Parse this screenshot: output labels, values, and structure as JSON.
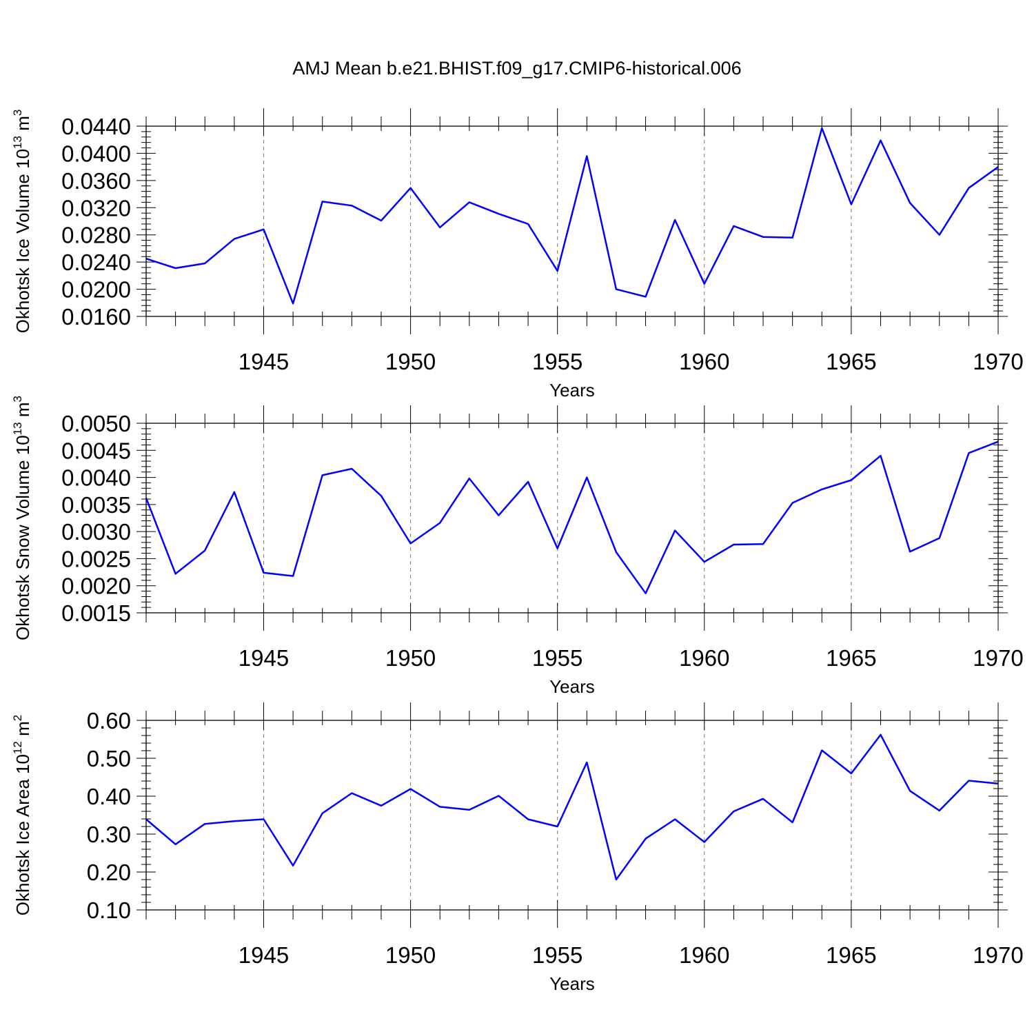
{
  "figure_title": "AMJ Mean b.e21.BHIST.f09_g17.CMIP6-historical.006",
  "colors": {
    "line": "#0000ff",
    "axis": "#000000",
    "grid": "#777777"
  },
  "chart_data": [
    {
      "type": "line",
      "ylabel": "Okhotsk Ice Volume 10",
      "ylabel_exp": "13",
      "ylabel_unit": " m",
      "ylabel_unit_exp": "3",
      "xlabel": "Years",
      "xlim": [
        1941,
        1970
      ],
      "ylim": [
        0.016,
        0.044
      ],
      "yticks": [
        0.016,
        0.02,
        0.024,
        0.028,
        0.032,
        0.036,
        0.04,
        0.044
      ],
      "ytick_labels": [
        "0.0160",
        "0.0200",
        "0.0240",
        "0.0280",
        "0.0320",
        "0.0360",
        "0.0400",
        "0.0440"
      ],
      "xticks": [
        1945,
        1950,
        1955,
        1960,
        1965,
        1970
      ],
      "xtick_labels": [
        "1945",
        "1950",
        "1955",
        "1960",
        "1965",
        "1970"
      ],
      "grid": "vertical dashed at major x ticks",
      "x": [
        1941,
        1942,
        1943,
        1944,
        1945,
        1946,
        1947,
        1948,
        1949,
        1950,
        1951,
        1952,
        1953,
        1954,
        1955,
        1956,
        1957,
        1958,
        1959,
        1960,
        1961,
        1962,
        1963,
        1964,
        1965,
        1966,
        1967,
        1968,
        1969,
        1970
      ],
      "values": [
        0.0245,
        0.0231,
        0.0238,
        0.0274,
        0.0288,
        0.0179,
        0.0329,
        0.0323,
        0.0301,
        0.0349,
        0.0291,
        0.0328,
        0.0311,
        0.0296,
        0.0227,
        0.0396,
        0.02,
        0.0189,
        0.0302,
        0.0208,
        0.0293,
        0.0277,
        0.0276,
        0.0437,
        0.0325,
        0.0419,
        0.0327,
        0.028,
        0.0349,
        0.038
      ]
    },
    {
      "type": "line",
      "ylabel": "Okhotsk Snow Volume 10",
      "ylabel_exp": "13",
      "ylabel_unit": " m",
      "ylabel_unit_exp": "3",
      "xlabel": "Years",
      "xlim": [
        1941,
        1970
      ],
      "ylim": [
        0.0015,
        0.005
      ],
      "yticks": [
        0.0015,
        0.002,
        0.0025,
        0.003,
        0.0035,
        0.004,
        0.0045,
        0.005
      ],
      "ytick_labels": [
        "0.0015",
        "0.0020",
        "0.0025",
        "0.0030",
        "0.0035",
        "0.0040",
        "0.0045",
        "0.0050"
      ],
      "xticks": [
        1945,
        1950,
        1955,
        1960,
        1965,
        1970
      ],
      "xtick_labels": [
        "1945",
        "1950",
        "1955",
        "1960",
        "1965",
        "1970"
      ],
      "grid": "vertical dashed at major x ticks",
      "x": [
        1941,
        1942,
        1943,
        1944,
        1945,
        1946,
        1947,
        1948,
        1949,
        1950,
        1951,
        1952,
        1953,
        1954,
        1955,
        1956,
        1957,
        1958,
        1959,
        1960,
        1961,
        1962,
        1963,
        1964,
        1965,
        1966,
        1967,
        1968,
        1969,
        1970
      ],
      "values": [
        0.00362,
        0.00222,
        0.00265,
        0.00373,
        0.00224,
        0.00218,
        0.00404,
        0.00416,
        0.00366,
        0.00278,
        0.00316,
        0.00398,
        0.0033,
        0.00392,
        0.00269,
        0.004,
        0.00262,
        0.00186,
        0.00302,
        0.00244,
        0.00276,
        0.00277,
        0.00353,
        0.00378,
        0.00395,
        0.0044,
        0.00263,
        0.00288,
        0.00445,
        0.00466
      ]
    },
    {
      "type": "line",
      "ylabel": "Okhotsk Ice Area 10",
      "ylabel_exp": "12",
      "ylabel_unit": " m",
      "ylabel_unit_exp": "2",
      "xlabel": "Years",
      "xlim": [
        1941,
        1970
      ],
      "ylim": [
        0.1,
        0.6
      ],
      "yticks": [
        0.1,
        0.2,
        0.3,
        0.4,
        0.5,
        0.6
      ],
      "ytick_labels": [
        "0.10",
        "0.20",
        "0.30",
        "0.40",
        "0.50",
        "0.60"
      ],
      "xticks": [
        1945,
        1950,
        1955,
        1960,
        1965,
        1970
      ],
      "xtick_labels": [
        "1945",
        "1950",
        "1955",
        "1960",
        "1965",
        "1970"
      ],
      "grid": "vertical dashed at major x ticks",
      "x": [
        1941,
        1942,
        1943,
        1944,
        1945,
        1946,
        1947,
        1948,
        1949,
        1950,
        1951,
        1952,
        1953,
        1954,
        1955,
        1956,
        1957,
        1958,
        1959,
        1960,
        1961,
        1962,
        1963,
        1964,
        1965,
        1966,
        1967,
        1968,
        1969,
        1970
      ],
      "values": [
        0.339,
        0.273,
        0.327,
        0.334,
        0.339,
        0.217,
        0.355,
        0.408,
        0.375,
        0.419,
        0.372,
        0.364,
        0.401,
        0.339,
        0.32,
        0.489,
        0.18,
        0.288,
        0.339,
        0.279,
        0.36,
        0.393,
        0.331,
        0.521,
        0.46,
        0.562,
        0.414,
        0.362,
        0.441,
        0.433
      ]
    }
  ]
}
